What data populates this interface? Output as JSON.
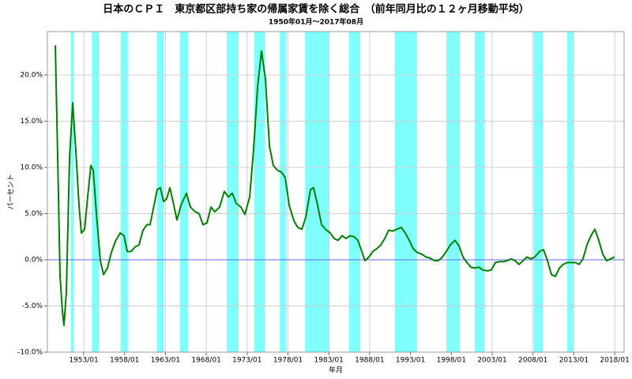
{
  "chart_data": {
    "type": "line",
    "title": "日本のＣＰＩ　東京都区部持ち家の帰属家賃を除く総合　（前年同月比の１２ヶ月移動平均）",
    "subtitle": "1950年01月～2017年08月",
    "xlabel": "年月",
    "ylabel": "パーセント",
    "color": "#008000",
    "band_color": "#80ffff",
    "zero_line_color": "#6666ff",
    "grid": true,
    "xlim": [
      1948.55,
      2019.15
    ],
    "ylim": [
      -10,
      24.7
    ],
    "xticks": [
      {
        "value": 1953,
        "label": "1953/01"
      },
      {
        "value": 1958,
        "label": "1958/01"
      },
      {
        "value": 1963,
        "label": "1963/01"
      },
      {
        "value": 1968,
        "label": "1968/01"
      },
      {
        "value": 1973,
        "label": "1973/01"
      },
      {
        "value": 1978,
        "label": "1978/01"
      },
      {
        "value": 1983,
        "label": "1983/01"
      },
      {
        "value": 1988,
        "label": "1988/01"
      },
      {
        "value": 1993,
        "label": "1993/01"
      },
      {
        "value": 1998,
        "label": "1998/01"
      },
      {
        "value": 2003,
        "label": "2003/01"
      },
      {
        "value": 2008,
        "label": "2008/01"
      },
      {
        "value": 2013,
        "label": "2013/01"
      },
      {
        "value": 2018,
        "label": "2018/01"
      }
    ],
    "yticks": [
      {
        "value": -10,
        "label": "-10.0%"
      },
      {
        "value": -5,
        "label": "-5.0%"
      },
      {
        "value": 0,
        "label": "0.0%"
      },
      {
        "value": 5,
        "label": "5.0%"
      },
      {
        "value": 10,
        "label": "10.0%"
      },
      {
        "value": 15,
        "label": "15.0%"
      },
      {
        "value": 20,
        "label": "20.0%"
      }
    ],
    "shaded_periods": [
      [
        1951.4,
        1951.8
      ],
      [
        1954.0,
        1954.85
      ],
      [
        1957.5,
        1958.45
      ],
      [
        1961.95,
        1962.8
      ],
      [
        1964.8,
        1965.8
      ],
      [
        1970.5,
        1971.95
      ],
      [
        1973.85,
        1975.2
      ],
      [
        1977.0,
        1977.8
      ],
      [
        1980.1,
        1983.1
      ],
      [
        1985.45,
        1986.85
      ],
      [
        1991.1,
        1993.8
      ],
      [
        1997.4,
        1999.05
      ],
      [
        2000.85,
        2002.05
      ],
      [
        2008.1,
        2009.2
      ],
      [
        2012.2,
        2012.9
      ]
    ],
    "x": [
      1949.52,
      1949.81,
      1950.1,
      1950.39,
      1950.58,
      1950.87,
      1951.26,
      1951.65,
      1952.03,
      1952.42,
      1952.71,
      1953.1,
      1953.48,
      1953.87,
      1954.16,
      1954.55,
      1955.03,
      1955.42,
      1955.9,
      1956.38,
      1956.87,
      1957.45,
      1957.93,
      1958.32,
      1958.8,
      1959.29,
      1959.77,
      1960.25,
      1960.74,
      1961.12,
      1961.51,
      1961.99,
      1962.38,
      1962.77,
      1963.15,
      1963.54,
      1963.93,
      1964.41,
      1964.9,
      1965.57,
      1966.06,
      1966.64,
      1967.12,
      1967.6,
      1968.09,
      1968.57,
      1969.05,
      1969.63,
      1970.21,
      1970.7,
      1971.18,
      1971.67,
      1972.25,
      1972.73,
      1973.31,
      1973.79,
      1974.28,
      1974.76,
      1975.24,
      1975.73,
      1976.21,
      1976.69,
      1977.18,
      1977.66,
      1978.15,
      1978.73,
      1979.21,
      1979.69,
      1980.18,
      1980.76,
      1981.14,
      1981.63,
      1982.11,
      1982.59,
      1983.17,
      1983.66,
      1984.14,
      1984.62,
      1985.11,
      1985.59,
      1986.08,
      1986.56,
      1987.04,
      1987.43,
      1987.91,
      1988.4,
      1988.88,
      1989.36,
      1989.85,
      1990.33,
      1990.81,
      1991.3,
      1991.88,
      1992.36,
      1992.85,
      1993.33,
      1993.81,
      1994.39,
      1994.88,
      1995.36,
      1995.94,
      1996.42,
      1996.91,
      1997.39,
      1997.87,
      1998.45,
      1998.94,
      1999.42,
      1999.91,
      2000.39,
      2000.87,
      2001.36,
      2001.84,
      2002.42,
      2002.9,
      2003.39,
      2003.87,
      2004.35,
      2004.84,
      2005.32,
      2005.8,
      2006.29,
      2006.77,
      2007.25,
      2007.74,
      2008.22,
      2008.8,
      2009.28,
      2009.77,
      2010.25,
      2010.74,
      2011.22,
      2011.7,
      2012.18,
      2012.67,
      2013.15,
      2013.64,
      2014.12,
      2014.6,
      2015.09,
      2015.57,
      2016.05,
      2016.54,
      2017.02,
      2017.51,
      2017.99
    ],
    "values": [
      23.2,
      11,
      -1.8,
      -5.6,
      -7.1,
      -3.5,
      11,
      17,
      11.8,
      5.9,
      2.9,
      3.3,
      6.8,
      10.2,
      9.7,
      5.0,
      -0.1,
      -1.6,
      -0.9,
      0.8,
      2,
      2.9,
      2.6,
      0.9,
      0.9,
      1.4,
      1.6,
      3.2,
      3.8,
      3.8,
      5.5,
      7.6,
      7.8,
      6.3,
      6.6,
      7.8,
      6.3,
      4.3,
      5.9,
      7.2,
      5.7,
      5.2,
      5.0,
      3.8,
      4.0,
      5.7,
      5.2,
      5.7,
      7.4,
      6.8,
      7.2,
      6.1,
      5.7,
      4.9,
      6.8,
      11.9,
      18.7,
      22.6,
      19.6,
      12.3,
      10.2,
      9.7,
      9.5,
      8.9,
      5.9,
      4.2,
      3.5,
      3.3,
      4.6,
      7.6,
      7.8,
      5.9,
      3.8,
      3.3,
      2.9,
      2.3,
      2.1,
      2.6,
      2.3,
      2.6,
      2.5,
      2.1,
      0.9,
      -0.1,
      0.3,
      0.9,
      1.2,
      1.6,
      2.3,
      3.2,
      3.1,
      3.3,
      3.5,
      2.9,
      2.1,
      1.2,
      0.8,
      0.6,
      0.3,
      0.2,
      -0.1,
      -0.1,
      0.3,
      0.9,
      1.6,
      2.1,
      1.5,
      0.3,
      -0.3,
      -0.8,
      -0.9,
      -0.8,
      -1.1,
      -1.2,
      -1.1,
      -0.3,
      -0.2,
      -0.2,
      -0.1,
      0.1,
      -0.1,
      -0.5,
      -0.1,
      0.3,
      0.1,
      0.3,
      0.9,
      1.1,
      -0.1,
      -1.6,
      -1.8,
      -0.9,
      -0.5,
      -0.3,
      -0.3,
      -0.3,
      -0.5,
      0.1,
      1.6,
      2.6,
      3.3,
      2.1,
      0.6,
      -0.1,
      0.1,
      0.3
    ]
  }
}
